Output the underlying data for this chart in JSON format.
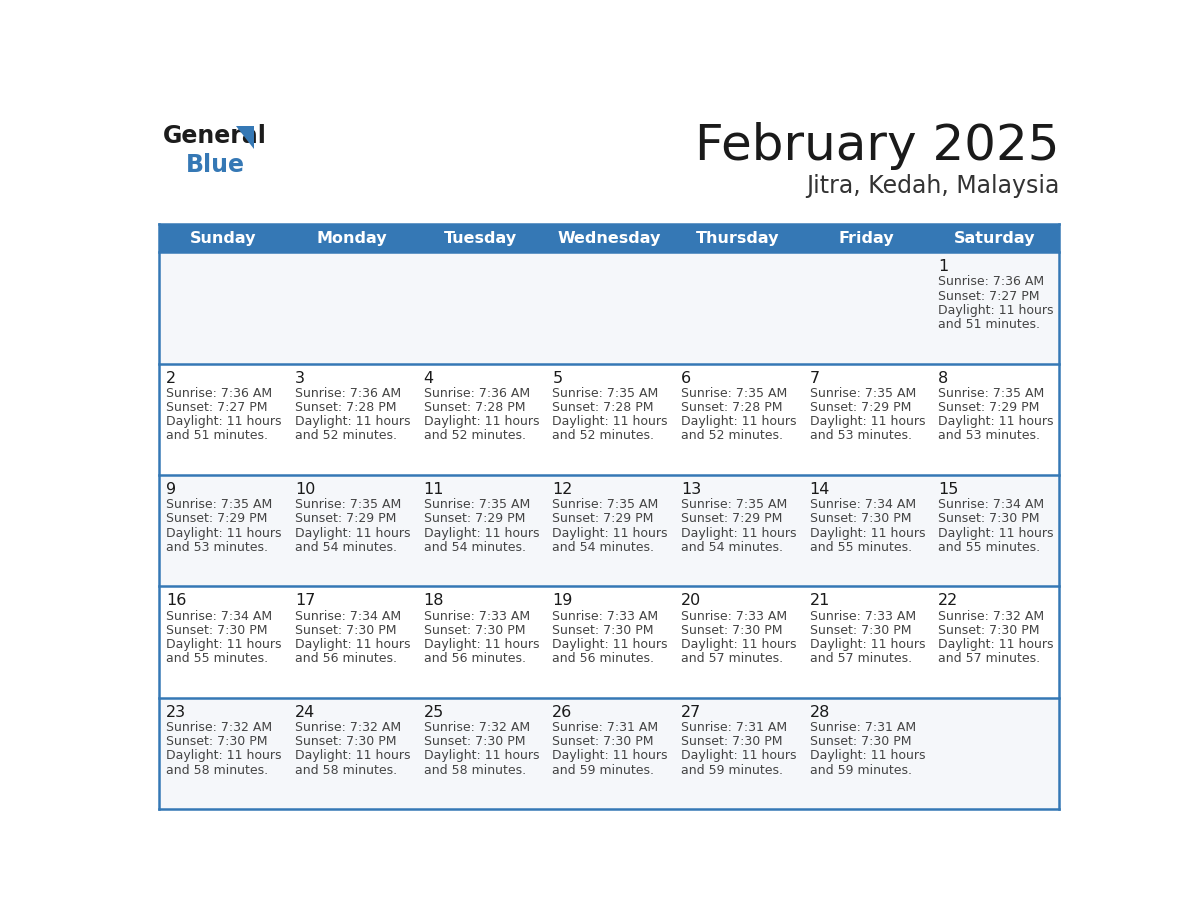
{
  "title": "February 2025",
  "subtitle": "Jitra, Kedah, Malaysia",
  "header_bg_color": "#3578b5",
  "header_text_color": "#ffffff",
  "border_color": "#3578b5",
  "cell_bg_even": "#f5f7fa",
  "cell_bg_odd": "#ffffff",
  "day_names": [
    "Sunday",
    "Monday",
    "Tuesday",
    "Wednesday",
    "Thursday",
    "Friday",
    "Saturday"
  ],
  "title_color": "#1a1a1a",
  "subtitle_color": "#333333",
  "cell_text_color": "#444444",
  "day_num_color": "#1a1a1a",
  "calendar": [
    [
      null,
      null,
      null,
      null,
      null,
      null,
      1
    ],
    [
      2,
      3,
      4,
      5,
      6,
      7,
      8
    ],
    [
      9,
      10,
      11,
      12,
      13,
      14,
      15
    ],
    [
      16,
      17,
      18,
      19,
      20,
      21,
      22
    ],
    [
      23,
      24,
      25,
      26,
      27,
      28,
      null
    ]
  ],
  "sun_data": {
    "1": {
      "sunrise": "7:36 AM",
      "sunset": "7:27 PM",
      "daylight_h": "11 hours",
      "daylight_m": "and 51 minutes."
    },
    "2": {
      "sunrise": "7:36 AM",
      "sunset": "7:27 PM",
      "daylight_h": "11 hours",
      "daylight_m": "and 51 minutes."
    },
    "3": {
      "sunrise": "7:36 AM",
      "sunset": "7:28 PM",
      "daylight_h": "11 hours",
      "daylight_m": "and 52 minutes."
    },
    "4": {
      "sunrise": "7:36 AM",
      "sunset": "7:28 PM",
      "daylight_h": "11 hours",
      "daylight_m": "and 52 minutes."
    },
    "5": {
      "sunrise": "7:35 AM",
      "sunset": "7:28 PM",
      "daylight_h": "11 hours",
      "daylight_m": "and 52 minutes."
    },
    "6": {
      "sunrise": "7:35 AM",
      "sunset": "7:28 PM",
      "daylight_h": "11 hours",
      "daylight_m": "and 52 minutes."
    },
    "7": {
      "sunrise": "7:35 AM",
      "sunset": "7:29 PM",
      "daylight_h": "11 hours",
      "daylight_m": "and 53 minutes."
    },
    "8": {
      "sunrise": "7:35 AM",
      "sunset": "7:29 PM",
      "daylight_h": "11 hours",
      "daylight_m": "and 53 minutes."
    },
    "9": {
      "sunrise": "7:35 AM",
      "sunset": "7:29 PM",
      "daylight_h": "11 hours",
      "daylight_m": "and 53 minutes."
    },
    "10": {
      "sunrise": "7:35 AM",
      "sunset": "7:29 PM",
      "daylight_h": "11 hours",
      "daylight_m": "and 54 minutes."
    },
    "11": {
      "sunrise": "7:35 AM",
      "sunset": "7:29 PM",
      "daylight_h": "11 hours",
      "daylight_m": "and 54 minutes."
    },
    "12": {
      "sunrise": "7:35 AM",
      "sunset": "7:29 PM",
      "daylight_h": "11 hours",
      "daylight_m": "and 54 minutes."
    },
    "13": {
      "sunrise": "7:35 AM",
      "sunset": "7:29 PM",
      "daylight_h": "11 hours",
      "daylight_m": "and 54 minutes."
    },
    "14": {
      "sunrise": "7:34 AM",
      "sunset": "7:30 PM",
      "daylight_h": "11 hours",
      "daylight_m": "and 55 minutes."
    },
    "15": {
      "sunrise": "7:34 AM",
      "sunset": "7:30 PM",
      "daylight_h": "11 hours",
      "daylight_m": "and 55 minutes."
    },
    "16": {
      "sunrise": "7:34 AM",
      "sunset": "7:30 PM",
      "daylight_h": "11 hours",
      "daylight_m": "and 55 minutes."
    },
    "17": {
      "sunrise": "7:34 AM",
      "sunset": "7:30 PM",
      "daylight_h": "11 hours",
      "daylight_m": "and 56 minutes."
    },
    "18": {
      "sunrise": "7:33 AM",
      "sunset": "7:30 PM",
      "daylight_h": "11 hours",
      "daylight_m": "and 56 minutes."
    },
    "19": {
      "sunrise": "7:33 AM",
      "sunset": "7:30 PM",
      "daylight_h": "11 hours",
      "daylight_m": "and 56 minutes."
    },
    "20": {
      "sunrise": "7:33 AM",
      "sunset": "7:30 PM",
      "daylight_h": "11 hours",
      "daylight_m": "and 57 minutes."
    },
    "21": {
      "sunrise": "7:33 AM",
      "sunset": "7:30 PM",
      "daylight_h": "11 hours",
      "daylight_m": "and 57 minutes."
    },
    "22": {
      "sunrise": "7:32 AM",
      "sunset": "7:30 PM",
      "daylight_h": "11 hours",
      "daylight_m": "and 57 minutes."
    },
    "23": {
      "sunrise": "7:32 AM",
      "sunset": "7:30 PM",
      "daylight_h": "11 hours",
      "daylight_m": "and 58 minutes."
    },
    "24": {
      "sunrise": "7:32 AM",
      "sunset": "7:30 PM",
      "daylight_h": "11 hours",
      "daylight_m": "and 58 minutes."
    },
    "25": {
      "sunrise": "7:32 AM",
      "sunset": "7:30 PM",
      "daylight_h": "11 hours",
      "daylight_m": "and 58 minutes."
    },
    "26": {
      "sunrise": "7:31 AM",
      "sunset": "7:30 PM",
      "daylight_h": "11 hours",
      "daylight_m": "and 59 minutes."
    },
    "27": {
      "sunrise": "7:31 AM",
      "sunset": "7:30 PM",
      "daylight_h": "11 hours",
      "daylight_m": "and 59 minutes."
    },
    "28": {
      "sunrise": "7:31 AM",
      "sunset": "7:30 PM",
      "daylight_h": "11 hours",
      "daylight_m": "and 59 minutes."
    }
  },
  "fig_width": 11.88,
  "fig_height": 9.18,
  "dpi": 100
}
